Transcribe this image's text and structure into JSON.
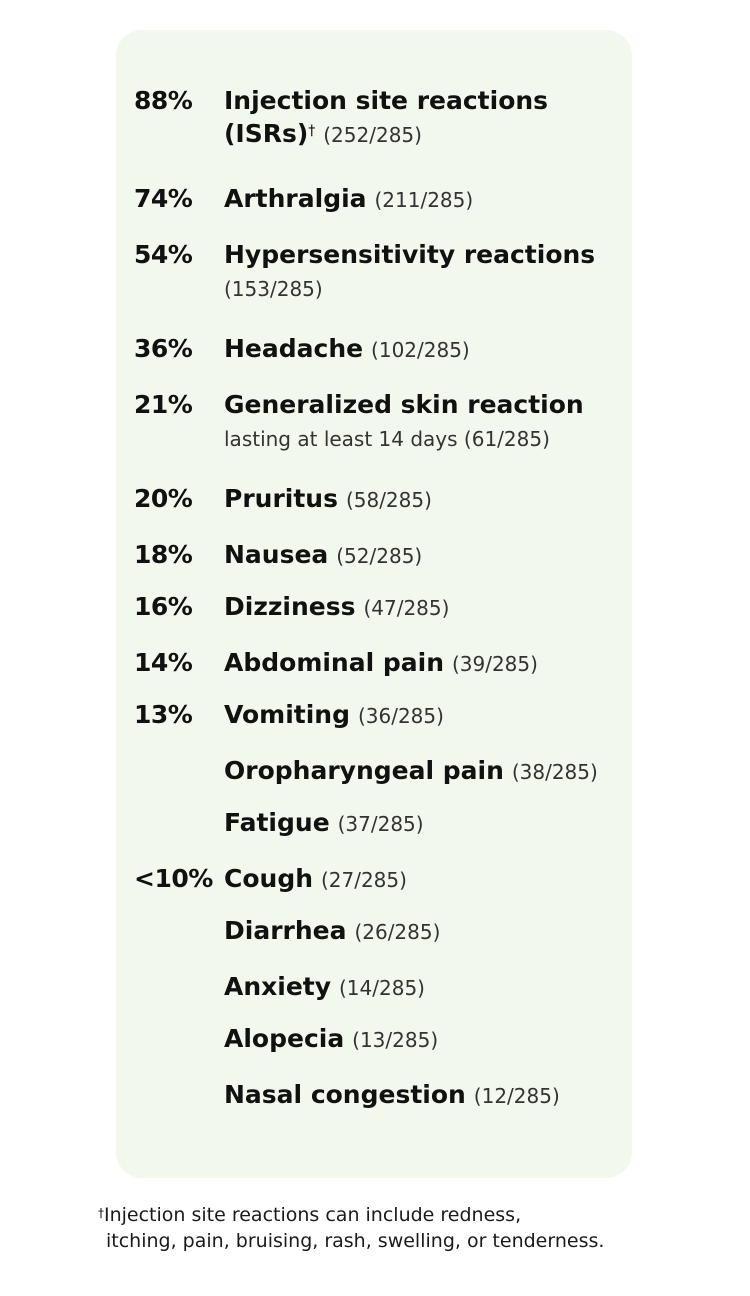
{
  "rows": [
    {
      "pct": "88%",
      "name": "Injection site reactions (ISRs)",
      "dagger": "†",
      "count": "(252/285)"
    },
    {
      "pct": "74%",
      "name": "Arthralgia",
      "count": "(211/285)"
    },
    {
      "pct": "54%",
      "name": "Hypersensitivity reactions",
      "count": "(153/285)"
    },
    {
      "pct": "36%",
      "name": "Headache",
      "count": "(102/285)"
    },
    {
      "pct": "21%",
      "name": "Generalized skin reaction",
      "sub": "lasting at least 14 days (61/285)"
    },
    {
      "pct": "20%",
      "name": "Pruritus",
      "count": "(58/285)"
    },
    {
      "pct": "18%",
      "name": "Nausea",
      "count": "(52/285)"
    },
    {
      "pct": "16%",
      "name": "Dizziness",
      "count": "(47/285)"
    },
    {
      "pct": "14%",
      "name": "Abdominal pain",
      "count": "(39/285)"
    },
    {
      "pct": "13%",
      "name": "Vomiting",
      "count": "(36/285)"
    },
    {
      "pct": "",
      "name": "Oropharyngeal pain",
      "count": "(38/285)"
    },
    {
      "pct": "",
      "name": "Fatigue",
      "count": "(37/285)"
    },
    {
      "pct": "<10%",
      "name": "Cough",
      "count": "(27/285)"
    },
    {
      "pct": "",
      "name": "Diarrhea",
      "count": "(26/285)"
    },
    {
      "pct": "",
      "name": "Anxiety",
      "count": "(14/285)"
    },
    {
      "pct": "",
      "name": "Alopecia",
      "count": "(13/285)"
    },
    {
      "pct": "",
      "name": "Nasal congestion",
      "count": "(12/285)"
    }
  ],
  "footnote": {
    "dagger": "†",
    "line1": "Injection site reactions can include redness,",
    "line2": "itching, pain, bruising, rash, swelling, or tenderness."
  }
}
